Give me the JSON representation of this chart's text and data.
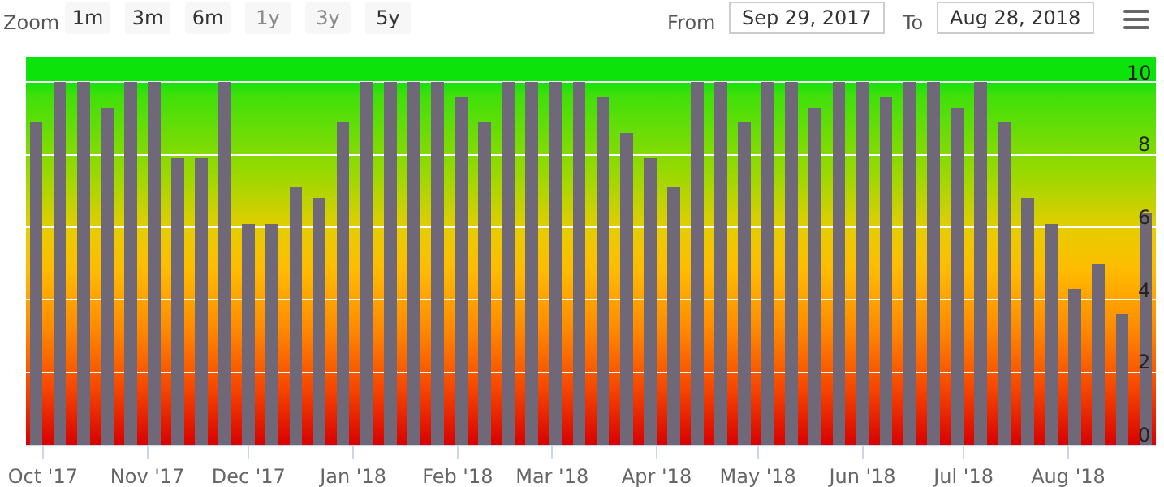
{
  "chart_data": {
    "type": "bar",
    "x": [
      "2017-09-29",
      "2017-10-06",
      "2017-10-13",
      "2017-10-20",
      "2017-10-27",
      "2017-11-03",
      "2017-11-10",
      "2017-11-17",
      "2017-11-24",
      "2017-12-01",
      "2017-12-08",
      "2017-12-15",
      "2017-12-22",
      "2017-12-29",
      "2018-01-05",
      "2018-01-12",
      "2018-01-19",
      "2018-01-26",
      "2018-02-02",
      "2018-02-09",
      "2018-02-16",
      "2018-02-23",
      "2018-03-02",
      "2018-03-09",
      "2018-03-16",
      "2018-03-23",
      "2018-03-30",
      "2018-04-06",
      "2018-04-13",
      "2018-04-20",
      "2018-04-27",
      "2018-05-04",
      "2018-05-11",
      "2018-05-18",
      "2018-05-25",
      "2018-06-01",
      "2018-06-08",
      "2018-06-15",
      "2018-06-22",
      "2018-06-29",
      "2018-07-06",
      "2018-07-13",
      "2018-07-20",
      "2018-07-27",
      "2018-08-03",
      "2018-08-10",
      "2018-08-17",
      "2018-08-24"
    ],
    "values": [
      8.9,
      10,
      10,
      9.3,
      10,
      10,
      7.9,
      7.9,
      10,
      6.1,
      6.1,
      7.1,
      6.8,
      8.9,
      10,
      10,
      10,
      10,
      9.6,
      8.9,
      10,
      10,
      10,
      10,
      9.6,
      8.6,
      7.9,
      7.1,
      10,
      10,
      8.9,
      10,
      10,
      9.3,
      10,
      10,
      9.6,
      10,
      10,
      9.3,
      10,
      8.9,
      6.8,
      6.1,
      4.3,
      5.0,
      3.6,
      6.4
    ],
    "color": "#6e6878",
    "xlim": [
      "2017-09-26",
      "2018-08-27"
    ],
    "xticks": [
      {
        "value": "2017-10-01",
        "label": "Oct '17"
      },
      {
        "value": "2017-11-01",
        "label": "Nov '17"
      },
      {
        "value": "2017-12-01",
        "label": "Dec '17"
      },
      {
        "value": "2018-01-01",
        "label": "Jan '18"
      },
      {
        "value": "2018-02-01",
        "label": "Feb '18"
      },
      {
        "value": "2018-03-01",
        "label": "Mar '18"
      },
      {
        "value": "2018-04-01",
        "label": "Apr '18"
      },
      {
        "value": "2018-05-01",
        "label": "May '18"
      },
      {
        "value": "2018-06-01",
        "label": "Jun '18"
      },
      {
        "value": "2018-07-01",
        "label": "Jul '18"
      },
      {
        "value": "2018-08-01",
        "label": "Aug '18"
      }
    ],
    "ylim": [
      0,
      10.7
    ],
    "yticks": [
      0,
      2,
      4,
      6,
      8,
      10
    ],
    "grid": "y",
    "annotations": [
      "Zoom",
      "1m",
      "3m",
      "6m",
      "1y",
      "3y",
      "5y",
      "From",
      "Sep 29, 2017",
      "To",
      "Aug 28, 2018"
    ]
  }
}
